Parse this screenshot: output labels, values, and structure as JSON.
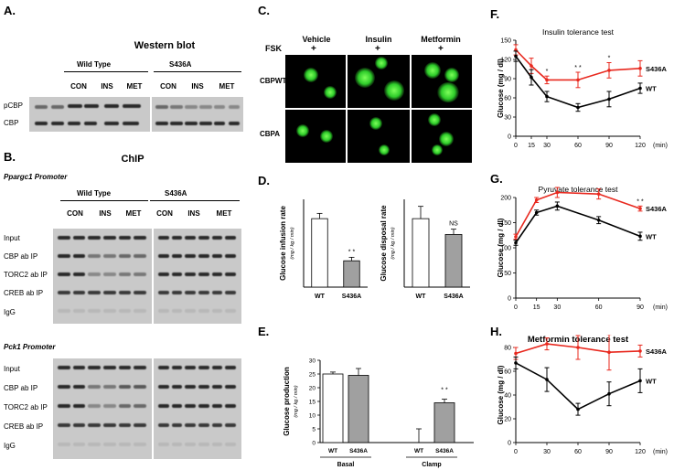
{
  "panels": {
    "A": {
      "letter": "A.",
      "title": "Western blot",
      "groups": [
        "Wild  Type",
        "S436A"
      ],
      "lanes": [
        "CON",
        "INS",
        "MET",
        "CON",
        "INS",
        "MET"
      ],
      "rows": [
        "pCBP",
        "CBP"
      ]
    },
    "B": {
      "letter": "B.",
      "title": "ChIP",
      "promoter1": "Ppargc1 Promoter",
      "promoter2": "Pck1 Promoter",
      "groups": [
        "Wild  Type",
        "S436A"
      ],
      "lanes": [
        "CON",
        "INS",
        "MET",
        "CON",
        "INS",
        "MET"
      ],
      "rows": [
        "Input",
        "CBP ab IP",
        "TORC2 ab IP",
        "CREB ab IP",
        "IgG"
      ]
    },
    "C": {
      "letter": "C.",
      "treatments": [
        "Vehicle",
        "Insulin",
        "Metformin"
      ],
      "fsk": "FSK",
      "plus": "+",
      "rows": [
        "CBPWT",
        "CBPA"
      ]
    },
    "D": {
      "letter": "D."
    },
    "E": {
      "letter": "E."
    },
    "F": {
      "letter": "F."
    },
    "G": {
      "letter": "G."
    },
    "H": {
      "letter": "H."
    }
  },
  "chart_data": [
    {
      "id": "D1",
      "type": "bar",
      "categories": [
        "WT",
        "S436A"
      ],
      "values": [
        39,
        15
      ],
      "errors": [
        3,
        2
      ],
      "ylabel": "Glucose infusion rate",
      "yunit": "(mg / kg / min)",
      "ylim": [
        0,
        50
      ],
      "annotations": [
        {
          "category": "S436A",
          "text": "* *"
        }
      ],
      "colors": [
        "#ffffff",
        "#a0a0a0"
      ]
    },
    {
      "id": "D2",
      "type": "bar",
      "categories": [
        "WT",
        "S436A"
      ],
      "values": [
        39,
        30
      ],
      "errors": [
        7,
        3
      ],
      "ylabel": "Glucose disposal rate",
      "yunit": "(mg / kg / min)",
      "ylim": [
        0,
        50
      ],
      "annotations": [
        {
          "category": "S436A",
          "text": "NS"
        }
      ],
      "colors": [
        "#ffffff",
        "#a0a0a0"
      ]
    },
    {
      "id": "E",
      "type": "bar",
      "groups": [
        "Basal",
        "Clamp"
      ],
      "categories": [
        "WT",
        "S436A",
        "WT",
        "S436A"
      ],
      "values": [
        25,
        24.5,
        0,
        14.5
      ],
      "errors": [
        0.7,
        2.5,
        5,
        1.3
      ],
      "ylabel": "Glucose production",
      "yunit": "(mg / kg / min)",
      "ylim": [
        0,
        30
      ],
      "yticks": [
        0,
        5,
        10,
        15,
        20,
        25,
        30
      ],
      "annotations": [
        {
          "index": 3,
          "text": "* *"
        }
      ],
      "colors": [
        "#ffffff",
        "#a0a0a0",
        "#ffffff",
        "#a0a0a0"
      ]
    },
    {
      "id": "F",
      "type": "line",
      "title": "Insulin tolerance test",
      "x": [
        0,
        15,
        30,
        60,
        90,
        120
      ],
      "xlabel": "(min)",
      "ylabel": "Glucose (mg / dl)",
      "ylim": [
        0,
        150
      ],
      "yticks": [
        0,
        30,
        60,
        90,
        120,
        150
      ],
      "series": [
        {
          "name": "S436A",
          "color": "#e8281e",
          "values": [
            135,
            110,
            88,
            88,
            103,
            106
          ],
          "errors": [
            8,
            12,
            6,
            12,
            12,
            12
          ]
        },
        {
          "name": "WT",
          "color": "#000000",
          "values": [
            125,
            92,
            62,
            45,
            58,
            75
          ],
          "errors": [
            8,
            12,
            8,
            6,
            12,
            8
          ]
        }
      ],
      "annotations": [
        {
          "x": 30,
          "text": "*"
        },
        {
          "x": 60,
          "text": "* *"
        },
        {
          "x": 90,
          "text": "*"
        }
      ]
    },
    {
      "id": "G",
      "type": "line",
      "title": "Pyruvate  tolerance test",
      "x": [
        0,
        15,
        30,
        60,
        90
      ],
      "xlabel": "(min)",
      "ylabel": "Glucose (mg / dl)",
      "ylim": [
        0,
        200
      ],
      "yticks": [
        0,
        50,
        100,
        150,
        200
      ],
      "series": [
        {
          "name": "S436A",
          "color": "#e8281e",
          "values": [
            122,
            195,
            210,
            207,
            178
          ],
          "errors": [
            5,
            5,
            10,
            10,
            5
          ]
        },
        {
          "name": "WT",
          "color": "#000000",
          "values": [
            110,
            170,
            183,
            155,
            123
          ],
          "errors": [
            5,
            5,
            8,
            7,
            8
          ]
        }
      ],
      "annotations": [
        {
          "x": 60,
          "text": "*"
        },
        {
          "x": 90,
          "text": "* *"
        }
      ]
    },
    {
      "id": "H",
      "type": "line",
      "title": "Metformin tolerance test",
      "x": [
        0,
        30,
        60,
        90,
        120
      ],
      "xlabel": "(min)",
      "ylabel": "Glucose (mg / dl)",
      "ylim": [
        0,
        80
      ],
      "yticks": [
        0,
        20,
        40,
        60,
        80
      ],
      "series": [
        {
          "name": "S436A",
          "color": "#e8281e",
          "values": [
            75,
            83,
            80,
            76,
            77
          ],
          "errors": [
            5,
            5,
            10,
            15,
            5
          ]
        },
        {
          "name": "WT",
          "color": "#000000",
          "values": [
            67,
            53,
            28,
            41,
            52
          ],
          "errors": [
            5,
            10,
            5,
            10,
            10
          ]
        }
      ],
      "annotations": [
        {
          "x": 30,
          "text": "*"
        },
        {
          "x": 60,
          "text": "* *"
        }
      ]
    }
  ]
}
